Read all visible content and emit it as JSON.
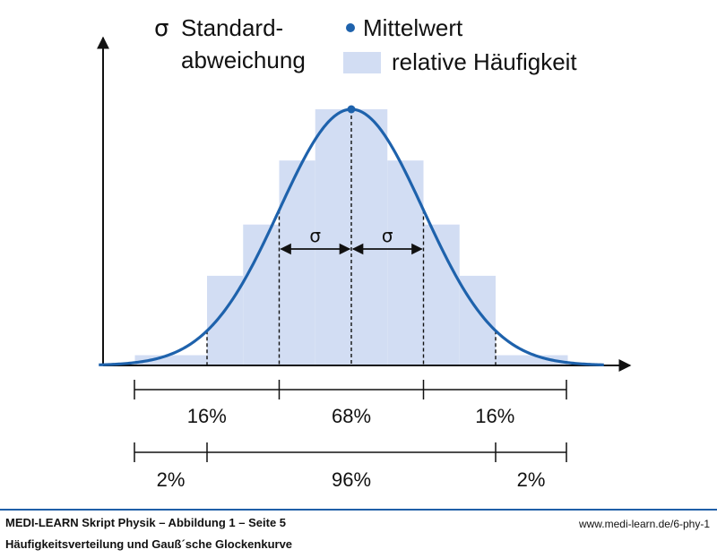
{
  "colors": {
    "curve": "#1e62ac",
    "bars": "#d2ddf3",
    "axis": "#111111",
    "marker": "#1e62ac",
    "footer_rule": "#1f5fa8"
  },
  "legend": {
    "sigma_symbol": "σ",
    "sigma_line1": "Standard-",
    "sigma_line2": "abweichung",
    "mean_label": "Mittelwert",
    "bar_label": "relative Häufigkeit"
  },
  "chart_data": {
    "type": "bar",
    "description_role": "histogram with Gaussian bell curve overlay",
    "x_range_sigma": [
      -3.5,
      3.5
    ],
    "bar_edges_sigma": [
      -3.0,
      -2.0,
      -1.5,
      -1.0,
      -0.5,
      0,
      0.5,
      1.0,
      1.5,
      2.0,
      3.0
    ],
    "bar_heights_relative": [
      0.04,
      0.35,
      0.55,
      0.8,
      1.0,
      1.0,
      0.8,
      0.55,
      0.35,
      0.04
    ],
    "curve": {
      "mean": 0,
      "sigma": 1,
      "peak_relative": 1.0
    },
    "sigma_annotations": [
      "σ",
      "σ"
    ],
    "ranges_1sigma": [
      {
        "label": "16%",
        "from": -3,
        "to": -1
      },
      {
        "label": "68%",
        "from": -1,
        "to": 1
      },
      {
        "label": "16%",
        "from": 1,
        "to": 3
      }
    ],
    "ranges_2sigma": [
      {
        "label": "2%",
        "from": -3,
        "to": -2
      },
      {
        "label": "96%",
        "from": -2,
        "to": 2
      },
      {
        "label": "2%",
        "from": 2,
        "to": 3
      }
    ],
    "grid": false,
    "legend_position": "top"
  },
  "footer": {
    "title": "MEDI-LEARN Skript Physik – Abbildung 1 – Seite 5",
    "url": "www.medi-learn.de/6-phy-1",
    "caption": "Häufigkeitsverteilung und Gauß´sche Glockenkurve"
  }
}
